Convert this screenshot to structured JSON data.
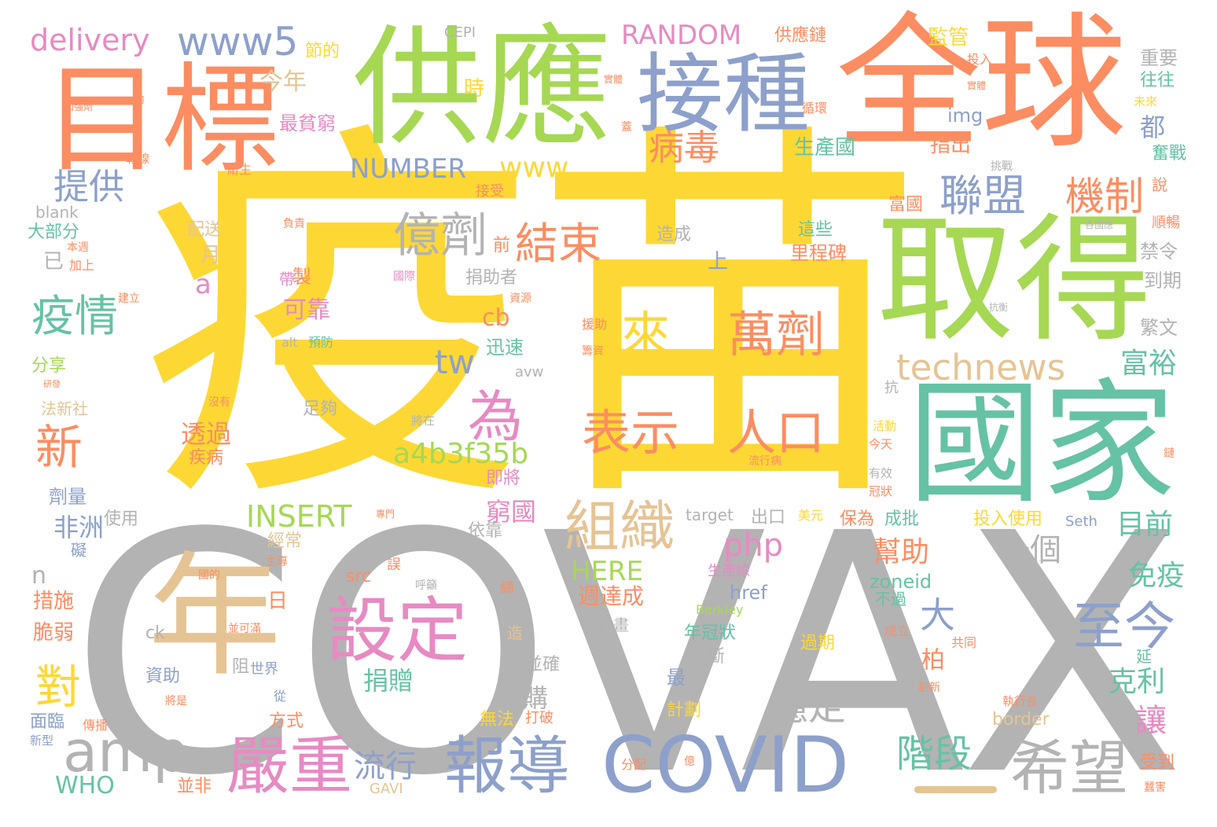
{
  "palette": {
    "yellow": "#fdd835",
    "gray": "#b3b3b3",
    "orange": "#fc8d62",
    "green": "#a6d854",
    "blue": "#8da0cb",
    "teal": "#66c2a5",
    "pink": "#e78ac3",
    "tan": "#e5c494"
  },
  "words": {
    "w001": "疫苗",
    "w002": "COVAX",
    "w003": "全球",
    "w004": "供應",
    "w005": "國家",
    "w006": "取得",
    "w007": "目標",
    "w008": "接種",
    "w009": "年",
    "w010": "設定",
    "w011": "COVID",
    "w012": "報導",
    "w013": "嚴重",
    "w014": "萬劑",
    "w015": "人口",
    "w016": "表示",
    "w017": "來",
    "w018": "希望",
    "w019": "amp",
    "w020": "為",
    "w021": "組織",
    "w022": "億劑",
    "w023": "至今",
    "w024": "technews",
    "w025": "聯盟",
    "w026": "機制",
    "w027": "結束",
    "w028": "病毒",
    "w029": "疫情",
    "w030": "提供",
    "w031": "www5",
    "w032": "delivery",
    "w033": "RANDOM",
    "w034": "NUMBER",
    "w035": "www",
    "w036": "a4b3f35b",
    "w037": "INSERT",
    "w038": "php",
    "w039": "HERE",
    "w040": "tw",
    "w041": "新",
    "w042": "對",
    "w043": "流行",
    "w044": "階段",
    "w045": "穩定",
    "w046": "一個",
    "w047": "大",
    "w048": "富裕",
    "w049": "讓",
    "w050": "克利",
    "w051": "免疫",
    "w052": "目前",
    "w053": "幫助",
    "w054": "柏",
    "w055": "捐贈",
    "w056": "採購",
    "w057": "窮國",
    "w058": "透過",
    "w059": "非洲",
    "w060": "WHO",
    "w061": "cb",
    "w062": "可靠",
    "w063": "zoneid",
    "w064": "href",
    "w065": "週達成",
    "w066": "今年",
    "w067": "最貧窮",
    "w068": "時",
    "w069": "生產國",
    "w070": "指出",
    "w071": "img",
    "w072": "監管",
    "w073": "供應鏈",
    "w074": "CEPI",
    "w075": "節的",
    "w076": "重要",
    "w077": "往往",
    "w078": "都",
    "w079": "奮戰",
    "w080": "禁令",
    "w081": "到期",
    "w082": "繁文",
    "w083": "順暢",
    "w084": "說",
    "w085": "里程碑",
    "w086": "這些",
    "w087": "造成",
    "w088": "富國",
    "w089": "上",
    "w090": "前",
    "w091": "捐助者",
    "w092": "月",
    "w093": "a",
    "w094": "帶",
    "w095": "製",
    "w096": "blank",
    "w097": "大部分",
    "w098": "已",
    "w099": "配送",
    "w100": "負責",
    "w101": "迅速",
    "w102": "avw",
    "w103": "alt",
    "w104": "預防",
    "w105": "分享",
    "w106": "法新社",
    "w107": "足夠",
    "w108": "將在",
    "w109": "疾病",
    "w110": "即將",
    "w111": "劑量",
    "w112": "使用",
    "w113": "n",
    "w114": "措施",
    "w115": "脆弱",
    "w116": "日",
    "w117": "經常",
    "w118": "依靠",
    "w119": "出口",
    "w120": "保為",
    "w121": "成批",
    "w122": "投入使用",
    "w123": "Seth",
    "w124": "target",
    "w125": "美元",
    "w126": "ck",
    "w127": "計畫",
    "w128": "並確",
    "w129": "年冠狀",
    "w130": "壟斷",
    "w131": "過期",
    "w132": "不過",
    "w133": "成立",
    "w134": "共同",
    "w135": "最",
    "w136": "阻",
    "w137": "世界",
    "w138": "資助",
    "w139": "方式",
    "w140": "面臨",
    "w141": "無法",
    "w142": "打破",
    "w143": "計劃",
    "w144": "border",
    "w145": "並非",
    "w146": "GAVI",
    "w147": "受到",
    "w148": "分配",
    "w149": "src",
    "w150": "生產線",
    "w151": "Berkley",
    "w152": "誤",
    "w153": "衛生",
    "w154": "接受",
    "w155": "投入",
    "w156": "循環",
    "w157": "挑戰",
    "w158": "各國應",
    "w159": "抗",
    "w160": "活動",
    "w161": "今天",
    "w162": "有效",
    "w163": "冠狀",
    "w164": "流行病",
    "w165": "執行長",
    "w166": "創新",
    "w167": "延",
    "w168": "鏈",
    "w169": "從",
    "w170": "將是",
    "w171": "傳播",
    "w172": "新型",
    "w173": "礙",
    "w174": "主導",
    "w175": "國的",
    "w176": "並可滿",
    "w177": "呼籲",
    "w178": "資源",
    "w179": "國際",
    "w180": "建立",
    "w181": "本週",
    "w182": "加上",
    "w183": "研發",
    "w184": "沒有",
    "w185": "專門",
    "w186": "戰線",
    "w187": "實體",
    "w188": "蓋",
    "w189": "內",
    "w190": "加強劑",
    "w191": "實體",
    "w192": "未來",
    "w193": "援助",
    "w194": "籌資",
    "w195": "抗衡",
    "w196": "締",
    "w197": "造",
    "w198": "億",
    "w199": "蠶害"
  }
}
